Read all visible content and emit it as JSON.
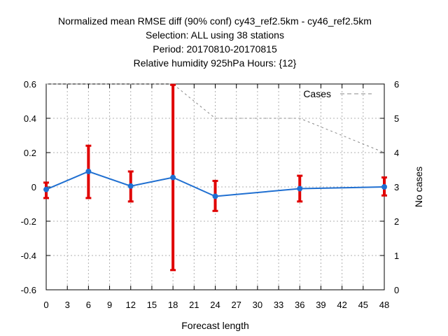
{
  "chart_data": {
    "type": "line",
    "title_lines": [
      "Normalized mean RMSE diff (90% conf) cy43_ref2.5km - cy46_ref2.5km",
      "Selection: ALL using    38 stations",
      "Period: 20170810-20170815",
      "Relative humidity 925hPa  Hours: {12}"
    ],
    "xlabel": "Forecast length",
    "ylabel": "",
    "y2label": "No cases",
    "xlim": [
      0,
      48
    ],
    "ylim": [
      -0.6,
      0.6
    ],
    "y2lim": [
      0,
      6
    ],
    "xticks": [
      "0",
      "3",
      "6",
      "9",
      "12",
      "15",
      "18",
      "21",
      "24",
      "27",
      "30",
      "33",
      "36",
      "39",
      "42",
      "45",
      "48"
    ],
    "yticks": [
      "0.6",
      "0.4",
      "0.2",
      "0",
      "-0.2",
      "-0.4",
      "-0.6"
    ],
    "y2ticks": [
      "6",
      "5",
      "4",
      "3",
      "2",
      "1",
      "0"
    ],
    "grid": true,
    "legend_position": "top-right",
    "series": [
      {
        "role": "mean-diff",
        "color": "#1f6fd1",
        "x": [
          0,
          6,
          12,
          18,
          24,
          36,
          48
        ],
        "y": [
          -0.015,
          0.09,
          0.005,
          0.055,
          -0.055,
          -0.01,
          0.0
        ],
        "err_low": [
          -0.065,
          -0.065,
          -0.085,
          -0.485,
          -0.14,
          -0.085,
          -0.05
        ],
        "err_high": [
          0.025,
          0.24,
          0.09,
          0.595,
          0.035,
          0.065,
          0.055
        ],
        "error_color": "#e00000"
      },
      {
        "name": "Cases",
        "role": "cases",
        "axis": "y2",
        "color": "#888888",
        "x": [
          0,
          18,
          24,
          36,
          48
        ],
        "y": [
          6,
          6,
          5,
          5,
          4
        ]
      }
    ]
  }
}
